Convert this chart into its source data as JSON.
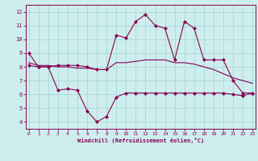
{
  "xlabel": "Windchill (Refroidissement éolien,°C)",
  "bg_color": "#ceeeed",
  "grid_color": "#a8d8d8",
  "line_color": "#880055",
  "x_ticks": [
    0,
    1,
    2,
    3,
    4,
    5,
    6,
    7,
    8,
    9,
    10,
    11,
    12,
    13,
    14,
    15,
    16,
    17,
    18,
    19,
    20,
    21,
    22,
    23
  ],
  "y_ticks": [
    4,
    5,
    6,
    7,
    8,
    9,
    10,
    11,
    12
  ],
  "ylim": [
    3.5,
    12.5
  ],
  "xlim": [
    -0.3,
    23.3
  ],
  "line1_x": [
    0,
    1,
    2,
    3,
    4,
    5,
    6,
    7,
    8,
    9,
    10,
    11,
    12,
    13,
    14,
    15,
    16,
    17,
    18,
    19,
    20,
    21,
    22,
    23
  ],
  "line1_y": [
    9.0,
    8.0,
    8.0,
    8.1,
    8.1,
    8.1,
    8.0,
    7.8,
    7.8,
    10.3,
    10.1,
    11.3,
    11.8,
    11.0,
    10.8,
    8.5,
    11.3,
    10.8,
    8.5,
    8.5,
    8.5,
    7.0,
    6.1,
    6.1
  ],
  "line2_x": [
    0,
    1,
    2,
    3,
    4,
    5,
    6,
    7,
    8,
    9,
    10,
    11,
    12,
    13,
    14,
    15,
    16,
    17,
    18,
    19,
    20,
    21,
    22,
    23
  ],
  "line2_y": [
    8.3,
    8.1,
    8.1,
    8.0,
    8.0,
    7.9,
    7.9,
    7.8,
    7.8,
    8.3,
    8.3,
    8.4,
    8.5,
    8.5,
    8.5,
    8.3,
    8.3,
    8.2,
    8.0,
    7.8,
    7.5,
    7.2,
    7.0,
    6.8
  ],
  "line3_x": [
    0,
    1,
    2,
    3,
    4,
    5,
    6,
    7,
    8,
    9,
    10,
    11,
    12,
    13,
    14,
    15,
    16,
    17,
    18,
    19,
    20,
    21,
    22,
    23
  ],
  "line3_y": [
    8.1,
    8.0,
    8.0,
    6.3,
    6.4,
    6.3,
    4.8,
    4.0,
    4.4,
    5.8,
    6.1,
    6.1,
    6.1,
    6.1,
    6.1,
    6.1,
    6.1,
    6.1,
    6.1,
    6.1,
    6.1,
    6.0,
    5.9,
    6.1
  ]
}
